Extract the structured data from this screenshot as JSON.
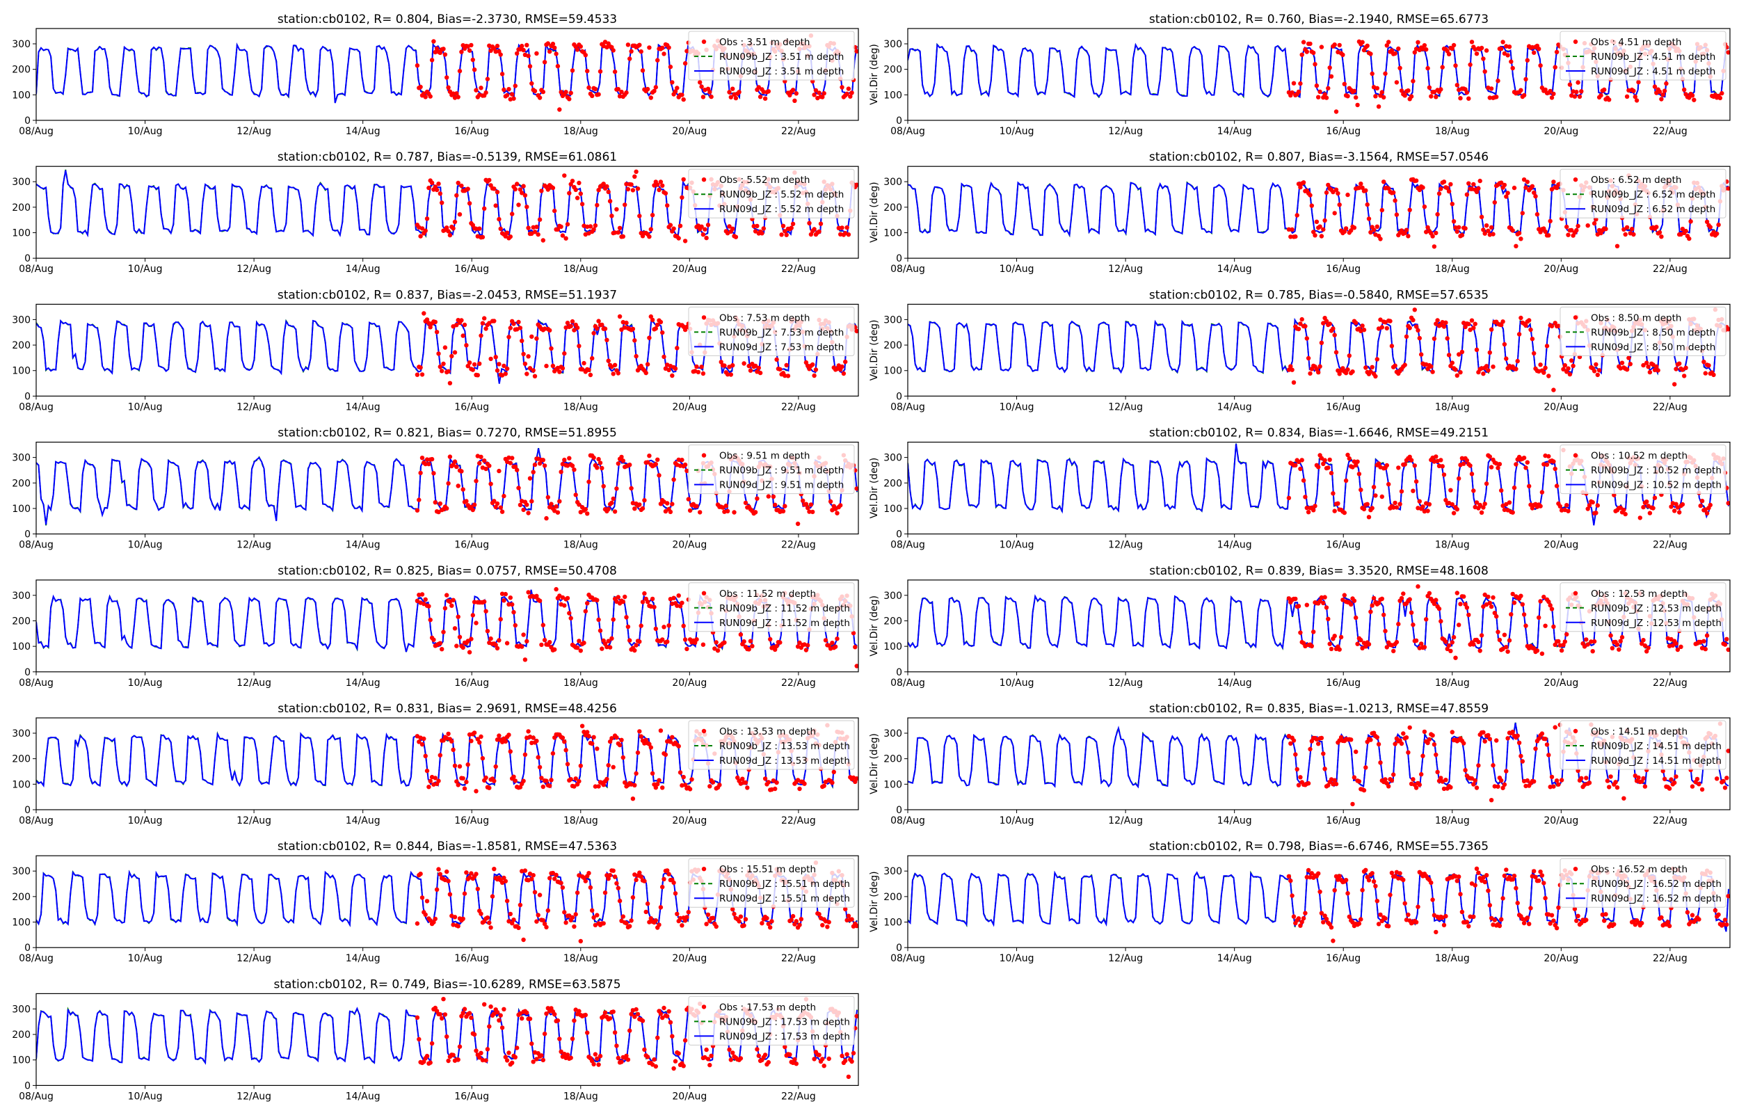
{
  "colors": {
    "obs": "#ff0000",
    "run09b": "#008000",
    "run09d": "#0000ff",
    "axis": "#000000"
  },
  "chart_data": {
    "type": "line",
    "x_tick_labels": [
      "08/Aug",
      "10/Aug",
      "12/Aug",
      "14/Aug",
      "16/Aug",
      "18/Aug",
      "20/Aug",
      "22/Aug"
    ],
    "x_tick_days": [
      8,
      10,
      12,
      14,
      16,
      18,
      20,
      22
    ],
    "xlim_days": [
      8,
      23.1
    ],
    "ylim": [
      0,
      360
    ],
    "y_ticks": [
      0,
      100,
      200,
      300
    ],
    "ylabel_right": "Vel.Dir (deg)",
    "obs_start_day": 15.0,
    "legend_placement": "upper right",
    "panels": [
      {
        "title": "station:cb0102, R= 0.804, Bias=-2.3730, RMSE=59.4533",
        "legend": [
          "Obs : 3.51 m depth",
          "RUN09b_JZ : 3.51 m depth",
          "RUN09d_JZ : 3.51 m depth"
        ]
      },
      {
        "title": "station:cb0102, R= 0.760, Bias=-2.1940, RMSE=65.6773",
        "legend": [
          "Obs : 4.51 m depth",
          "RUN09b_JZ : 4.51 m depth",
          "RUN09d_JZ : 4.51 m depth"
        ]
      },
      {
        "title": "station:cb0102, R= 0.787, Bias=-0.5139, RMSE=61.0861",
        "legend": [
          "Obs : 5.52 m depth",
          "RUN09b_JZ : 5.52 m depth",
          "RUN09d_JZ : 5.52 m depth"
        ]
      },
      {
        "title": "station:cb0102, R= 0.807, Bias=-3.1564, RMSE=57.0546",
        "legend": [
          "Obs : 6.52 m depth",
          "RUN09b_JZ : 6.52 m depth",
          "RUN09d_JZ : 6.52 m depth"
        ]
      },
      {
        "title": "station:cb0102, R= 0.837, Bias=-2.0453, RMSE=51.1937",
        "legend": [
          "Obs : 7.53 m depth",
          "RUN09b_JZ : 7.53 m depth",
          "RUN09d_JZ : 7.53 m depth"
        ]
      },
      {
        "title": "station:cb0102, R= 0.785, Bias=-0.5840, RMSE=57.6535",
        "legend": [
          "Obs : 8.50 m depth",
          "RUN09b_JZ : 8.50 m depth",
          "RUN09d_JZ : 8.50 m depth"
        ]
      },
      {
        "title": "station:cb0102, R= 0.821, Bias= 0.7270, RMSE=51.8955",
        "legend": [
          "Obs : 9.51 m depth",
          "RUN09b_JZ : 9.51 m depth",
          "RUN09d_JZ : 9.51 m depth"
        ]
      },
      {
        "title": "station:cb0102, R= 0.834, Bias=-1.6646, RMSE=49.2151",
        "legend": [
          "Obs : 10.52 m depth",
          "RUN09b_JZ : 10.52 m depth",
          "RUN09d_JZ : 10.52 m depth"
        ]
      },
      {
        "title": "station:cb0102, R= 0.825, Bias= 0.0757, RMSE=50.4708",
        "legend": [
          "Obs : 11.52 m depth",
          "RUN09b_JZ : 11.52 m depth",
          "RUN09d_JZ : 11.52 m depth"
        ]
      },
      {
        "title": "station:cb0102, R= 0.839, Bias= 3.3520, RMSE=48.1608",
        "legend": [
          "Obs : 12.53 m depth",
          "RUN09b_JZ : 12.53 m depth",
          "RUN09d_JZ : 12.53 m depth"
        ]
      },
      {
        "title": "station:cb0102, R= 0.831, Bias= 2.9691, RMSE=48.4256",
        "legend": [
          "Obs : 13.53 m depth",
          "RUN09b_JZ : 13.53 m depth",
          "RUN09d_JZ : 13.53 m depth"
        ]
      },
      {
        "title": "station:cb0102, R= 0.835, Bias=-1.0213, RMSE=47.8559",
        "legend": [
          "Obs : 14.51 m depth",
          "RUN09b_JZ : 14.51 m depth",
          "RUN09d_JZ : 14.51 m depth"
        ]
      },
      {
        "title": "station:cb0102, R= 0.844, Bias=-1.8581, RMSE=47.5363",
        "legend": [
          "Obs : 15.51 m depth",
          "RUN09b_JZ : 15.51 m depth",
          "RUN09d_JZ : 15.51 m depth"
        ]
      },
      {
        "title": "station:cb0102, R= 0.798, Bias=-6.6746, RMSE=55.7365",
        "legend": [
          "Obs : 16.52 m depth",
          "RUN09b_JZ : 16.52 m depth",
          "RUN09d_JZ : 16.52 m depth"
        ]
      },
      {
        "title": "station:cb0102, R= 0.749, Bias=-10.6289, RMSE=63.5875",
        "legend": [
          "Obs : 17.53 m depth",
          "RUN09b_JZ : 17.53 m depth",
          "RUN09d_JZ : 17.53 m depth"
        ]
      }
    ]
  }
}
